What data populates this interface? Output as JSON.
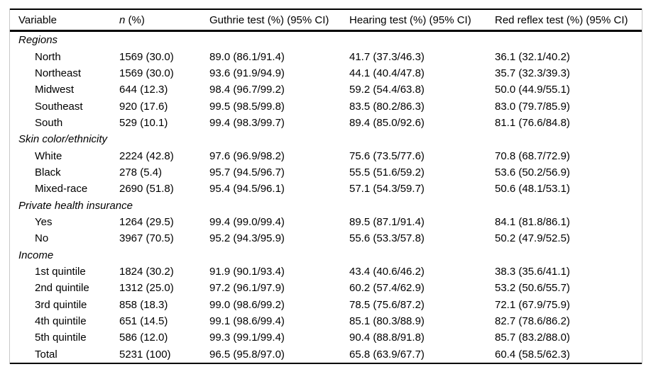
{
  "table": {
    "header": {
      "variable": "Variable",
      "n_italic": "n",
      "n_rest": "(%)",
      "guthrie": "Guthrie test (%) (95% CI)",
      "hearing": "Hearing test (%) (95% CI)",
      "red_reflex": "Red reflex test (%) (95% CI)"
    },
    "sections": [
      {
        "label": "Regions",
        "rows": [
          {
            "variable": "North",
            "n": "1569 (30.0)",
            "guthrie": "89.0 (86.1/91.4)",
            "hearing": "41.7 (37.3/46.3)",
            "red_reflex": "36.1 (32.1/40.2)"
          },
          {
            "variable": "Northeast",
            "n": "1569 (30.0)",
            "guthrie": "93.6 (91.9/94.9)",
            "hearing": "44.1 (40.4/47.8)",
            "red_reflex": "35.7 (32.3/39.3)"
          },
          {
            "variable": "Midwest",
            "n": "644 (12.3)",
            "guthrie": "98.4 (96.7/99.2)",
            "hearing": "59.2 (54.4/63.8)",
            "red_reflex": "50.0 (44.9/55.1)"
          },
          {
            "variable": "Southeast",
            "n": "920 (17.6)",
            "guthrie": "99.5 (98.5/99.8)",
            "hearing": "83.5 (80.2/86.3)",
            "red_reflex": "83.0 (79.7/85.9)"
          },
          {
            "variable": "South",
            "n": "529 (10.1)",
            "guthrie": "99.4 (98.3/99.7)",
            "hearing": "89.4 (85.0/92.6)",
            "red_reflex": "81.1 (76.6/84.8)"
          }
        ]
      },
      {
        "label": "Skin color/ethnicity",
        "rows": [
          {
            "variable": "White",
            "n": "2224 (42.8)",
            "guthrie": "97.6 (96.9/98.2)",
            "hearing": "75.6 (73.5/77.6)",
            "red_reflex": "70.8 (68.7/72.9)"
          },
          {
            "variable": "Black",
            "n": "278 (5.4)",
            "guthrie": "95.7 (94.5/96.7)",
            "hearing": "55.5 (51.6/59.2)",
            "red_reflex": "53.6 (50.2/56.9)"
          },
          {
            "variable": "Mixed-race",
            "n": "2690 (51.8)",
            "guthrie": "95.4 (94.5/96.1)",
            "hearing": "57.1 (54.3/59.7)",
            "red_reflex": "50.6 (48.1/53.1)"
          }
        ]
      },
      {
        "label": "Private health insurance",
        "rows": [
          {
            "variable": "Yes",
            "n": "1264 (29.5)",
            "guthrie": "99.4 (99.0/99.4)",
            "hearing": "89.5 (87.1/91.4)",
            "red_reflex": "84.1 (81.8/86.1)"
          },
          {
            "variable": "No",
            "n": "3967 (70.5)",
            "guthrie": "95.2 (94.3/95.9)",
            "hearing": "55.6 (53.3/57.8)",
            "red_reflex": "50.2 (47.9/52.5)"
          }
        ]
      },
      {
        "label": "Income",
        "rows": [
          {
            "variable": "1st quintile",
            "n": "1824 (30.2)",
            "guthrie": "91.9 (90.1/93.4)",
            "hearing": "43.4 (40.6/46.2)",
            "red_reflex": "38.3 (35.6/41.1)"
          },
          {
            "variable": "2nd quintile",
            "n": "1312 (25.0)",
            "guthrie": "97.2 (96.1/97.9)",
            "hearing": "60.2 (57.4/62.9)",
            "red_reflex": "53.2 (50.6/55.7)"
          },
          {
            "variable": "3rd quintile",
            "n": "858 (18.3)",
            "guthrie": "99.0 (98.6/99.2)",
            "hearing": "78.5 (75.6/87.2)",
            "red_reflex": "72.1 (67.9/75.9)"
          },
          {
            "variable": "4th quintile",
            "n": "651 (14.5)",
            "guthrie": "99.1 (98.6/99.4)",
            "hearing": "85.1 (80.3/88.9)",
            "red_reflex": "82.7 (78.6/86.2)"
          },
          {
            "variable": "5th quintile",
            "n": "586 (12.0)",
            "guthrie": "99.3 (99.1/99.4)",
            "hearing": "90.4 (88.8/91.8)",
            "red_reflex": "85.7 (83.2/88.0)"
          },
          {
            "variable": "Total",
            "n": "5231 (100)",
            "guthrie": "96.5 (95.8/97.0)",
            "hearing": "65.8 (63.9/67.7)",
            "red_reflex": "60.4 (58.5/62.3)"
          }
        ]
      }
    ]
  }
}
